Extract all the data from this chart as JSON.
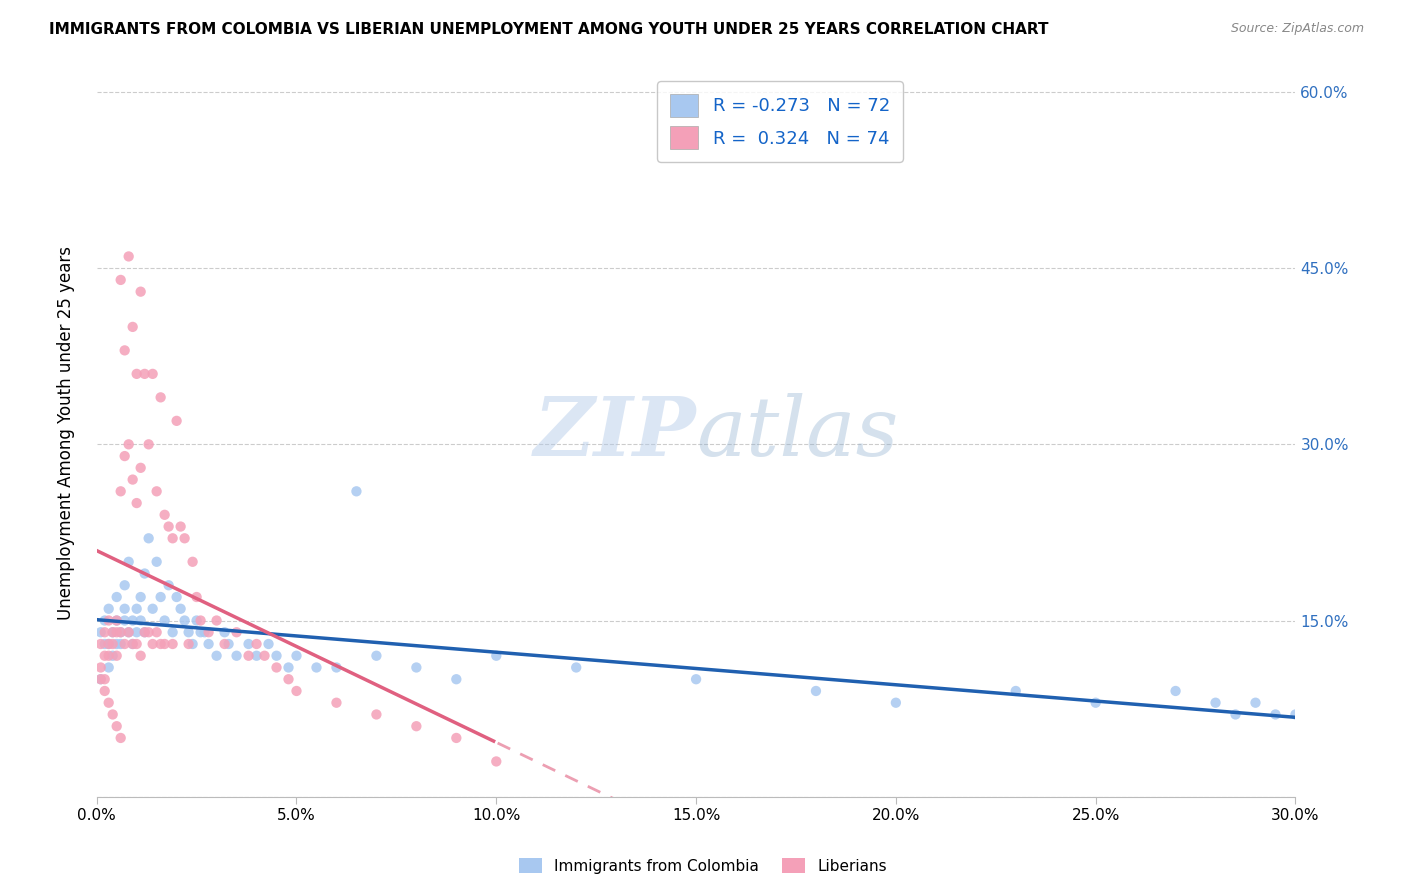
{
  "title": "IMMIGRANTS FROM COLOMBIA VS LIBERIAN UNEMPLOYMENT AMONG YOUTH UNDER 25 YEARS CORRELATION CHART",
  "source": "Source: ZipAtlas.com",
  "ylabel_left": "Unemployment Among Youth under 25 years",
  "xlim": [
    0.0,
    0.3
  ],
  "ylim": [
    0.0,
    0.62
  ],
  "r_colombia": -0.273,
  "n_colombia": 72,
  "r_liberian": 0.324,
  "n_liberian": 74,
  "color_colombia": "#A8C8F0",
  "color_liberian": "#F4A0B8",
  "trendline_colombia_color": "#2060B0",
  "trendline_liberian_color": "#E06080",
  "watermark_color": "#C8D8F0",
  "legend_r_color": "#1464C8",
  "scatter_colombia": {
    "x": [
      0.001,
      0.001,
      0.002,
      0.002,
      0.003,
      0.003,
      0.003,
      0.004,
      0.004,
      0.005,
      0.005,
      0.005,
      0.006,
      0.006,
      0.007,
      0.007,
      0.007,
      0.008,
      0.008,
      0.009,
      0.009,
      0.01,
      0.01,
      0.011,
      0.011,
      0.012,
      0.012,
      0.013,
      0.014,
      0.015,
      0.016,
      0.017,
      0.018,
      0.019,
      0.02,
      0.021,
      0.022,
      0.023,
      0.024,
      0.025,
      0.026,
      0.027,
      0.028,
      0.03,
      0.032,
      0.033,
      0.035,
      0.038,
      0.04,
      0.043,
      0.045,
      0.048,
      0.05,
      0.055,
      0.06,
      0.065,
      0.07,
      0.08,
      0.09,
      0.1,
      0.12,
      0.15,
      0.18,
      0.2,
      0.23,
      0.25,
      0.27,
      0.28,
      0.285,
      0.29,
      0.295,
      0.3
    ],
    "y": [
      0.1,
      0.14,
      0.13,
      0.15,
      0.11,
      0.13,
      0.16,
      0.14,
      0.12,
      0.13,
      0.15,
      0.17,
      0.14,
      0.13,
      0.15,
      0.16,
      0.18,
      0.14,
      0.2,
      0.15,
      0.13,
      0.16,
      0.14,
      0.17,
      0.15,
      0.19,
      0.14,
      0.22,
      0.16,
      0.2,
      0.17,
      0.15,
      0.18,
      0.14,
      0.17,
      0.16,
      0.15,
      0.14,
      0.13,
      0.15,
      0.14,
      0.14,
      0.13,
      0.12,
      0.14,
      0.13,
      0.12,
      0.13,
      0.12,
      0.13,
      0.12,
      0.11,
      0.12,
      0.11,
      0.11,
      0.26,
      0.12,
      0.11,
      0.1,
      0.12,
      0.11,
      0.1,
      0.09,
      0.08,
      0.09,
      0.08,
      0.09,
      0.08,
      0.07,
      0.08,
      0.07,
      0.07
    ]
  },
  "scatter_liberian": {
    "x": [
      0.001,
      0.001,
      0.001,
      0.002,
      0.002,
      0.002,
      0.002,
      0.003,
      0.003,
      0.003,
      0.003,
      0.004,
      0.004,
      0.004,
      0.005,
      0.005,
      0.005,
      0.005,
      0.006,
      0.006,
      0.006,
      0.006,
      0.007,
      0.007,
      0.007,
      0.008,
      0.008,
      0.008,
      0.009,
      0.009,
      0.009,
      0.01,
      0.01,
      0.01,
      0.011,
      0.011,
      0.011,
      0.012,
      0.012,
      0.013,
      0.013,
      0.014,
      0.014,
      0.015,
      0.015,
      0.016,
      0.016,
      0.017,
      0.017,
      0.018,
      0.019,
      0.019,
      0.02,
      0.021,
      0.022,
      0.023,
      0.024,
      0.025,
      0.026,
      0.028,
      0.03,
      0.032,
      0.035,
      0.038,
      0.04,
      0.042,
      0.045,
      0.048,
      0.05,
      0.06,
      0.07,
      0.08,
      0.09,
      0.1
    ],
    "y": [
      0.13,
      0.11,
      0.1,
      0.14,
      0.12,
      0.1,
      0.09,
      0.15,
      0.13,
      0.12,
      0.08,
      0.14,
      0.13,
      0.07,
      0.15,
      0.14,
      0.12,
      0.06,
      0.44,
      0.26,
      0.14,
      0.05,
      0.38,
      0.29,
      0.13,
      0.46,
      0.3,
      0.14,
      0.4,
      0.27,
      0.13,
      0.36,
      0.25,
      0.13,
      0.43,
      0.28,
      0.12,
      0.36,
      0.14,
      0.3,
      0.14,
      0.36,
      0.13,
      0.26,
      0.14,
      0.34,
      0.13,
      0.24,
      0.13,
      0.23,
      0.22,
      0.13,
      0.32,
      0.23,
      0.22,
      0.13,
      0.2,
      0.17,
      0.15,
      0.14,
      0.15,
      0.13,
      0.14,
      0.12,
      0.13,
      0.12,
      0.11,
      0.1,
      0.09,
      0.08,
      0.07,
      0.06,
      0.05,
      0.03
    ]
  }
}
